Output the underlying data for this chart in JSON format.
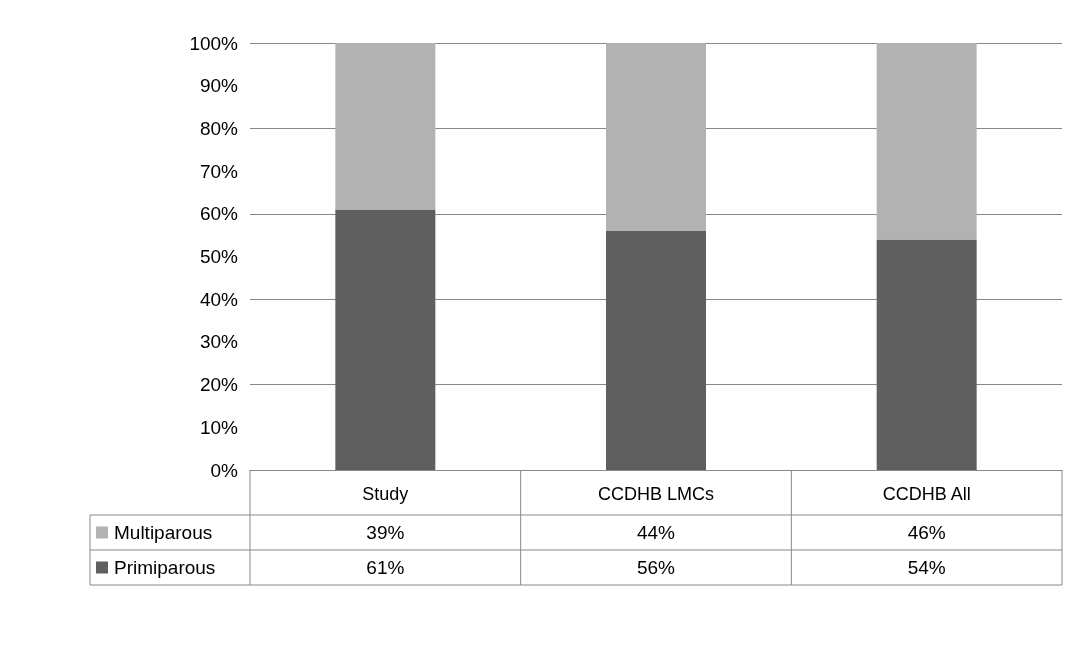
{
  "chart_data": {
    "type": "bar",
    "stacked": true,
    "categories": [
      "Study",
      "CCDHB LMCs",
      "CCDHB All"
    ],
    "series": [
      {
        "name": "Primiparous",
        "color": "#5f5f5f",
        "values": [
          61,
          56,
          54
        ],
        "value_labels": [
          "61%",
          "56%",
          "54%"
        ]
      },
      {
        "name": "Multiparous",
        "color": "#b2b2b2",
        "values": [
          39,
          44,
          46
        ],
        "value_labels": [
          "39%",
          "44%",
          "46%"
        ]
      }
    ],
    "ylim": [
      0,
      100
    ],
    "yticks": [
      {
        "value": 0,
        "label": "0%"
      },
      {
        "value": 10,
        "label": "10%"
      },
      {
        "value": 20,
        "label": "20%"
      },
      {
        "value": 30,
        "label": "30%"
      },
      {
        "value": 40,
        "label": "40%"
      },
      {
        "value": 50,
        "label": "50%"
      },
      {
        "value": 60,
        "label": "60%"
      },
      {
        "value": 70,
        "label": "70%"
      },
      {
        "value": 80,
        "label": "80%"
      },
      {
        "value": 90,
        "label": "90%"
      },
      {
        "value": 100,
        "label": "100%"
      }
    ],
    "grid": "y",
    "legend": "bottom"
  }
}
